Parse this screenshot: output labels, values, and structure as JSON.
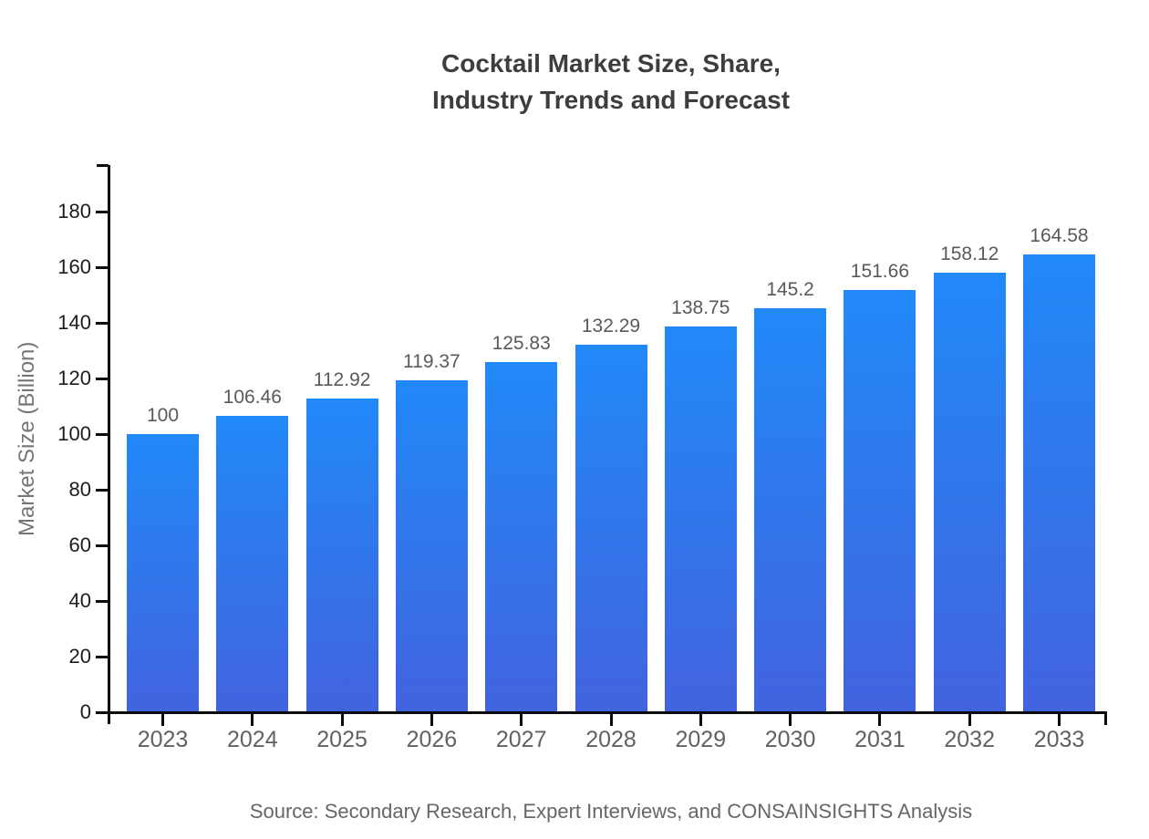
{
  "title": {
    "lines": [
      "Cocktail Market Size, Share,",
      "Industry Trends and Forecast"
    ],
    "color": "#3d3d3d"
  },
  "source": "Source: Secondary Research, Expert Interviews, and CONSAINSIGHTS Analysis",
  "chart_data": {
    "type": "bar",
    "title": "Cocktail Market Size, Share, Industry Trends and Forecast",
    "categories": [
      "2023",
      "2024",
      "2025",
      "2026",
      "2027",
      "2028",
      "2029",
      "2030",
      "2031",
      "2032",
      "2033"
    ],
    "values": [
      100,
      106.46,
      112.92,
      119.37,
      125.83,
      132.29,
      138.75,
      145.2,
      151.66,
      158.12,
      164.58
    ],
    "value_labels": [
      "100",
      "106.46",
      "112.92",
      "119.37",
      "125.83",
      "132.29",
      "138.75",
      "145.2",
      "151.66",
      "158.12",
      "164.58"
    ],
    "xlabel": "",
    "ylabel": "Market Size (Billion)",
    "ylim": [
      0,
      197
    ],
    "yticks": [
      0,
      20,
      40,
      60,
      80,
      100,
      120,
      140,
      160,
      180
    ],
    "grid": false,
    "legend": null,
    "bar_gradient": {
      "top": "#2189F8",
      "bottom": "#4263DE"
    },
    "axis_color": "#0a0a0a",
    "value_label_color": "#595959",
    "y_tick_label_color": "#1c1c1c",
    "x_tick_label_color": "#616161",
    "source_note": "Source: Secondary Research, Expert Interviews, and CONSAINSIGHTS Analysis"
  }
}
